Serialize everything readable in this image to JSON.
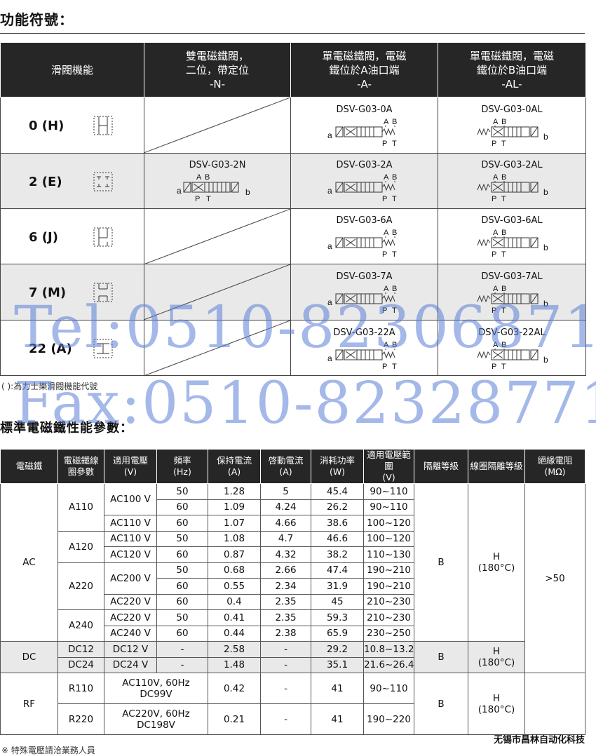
{
  "section1": {
    "title": "功能符號："
  },
  "function_table": {
    "headers": [
      {
        "line1": "滑閥機能",
        "line2": "",
        "line3": ""
      },
      {
        "line1": "雙電磁鐵閥，",
        "line2": "二位，帶定位",
        "line3": "-N-"
      },
      {
        "line1": "單電磁鐵閥，電磁",
        "line2": "鐵位於A油口端",
        "line3": "-A-"
      },
      {
        "line1": "單電磁鐵閥，電磁",
        "line2": "鐵位於B油口端",
        "line3": "-AL-"
      }
    ],
    "rows": [
      {
        "function": "0 (H)",
        "n": "",
        "a": "DSV-G03-0A",
        "al": "DSV-G03-0AL"
      },
      {
        "function": "2 (E)",
        "n": "DSV-G03-2N",
        "a": "DSV-G03-2A",
        "al": "DSV-G03-2AL"
      },
      {
        "function": "6 (J)",
        "n": "",
        "a": "DSV-G03-6A",
        "al": "DSV-G03-6AL"
      },
      {
        "function": "7 (M)",
        "n": "",
        "a": "DSV-G03-7A",
        "al": "DSV-G03-7AL"
      },
      {
        "function": "22 (A)",
        "n": "",
        "a": "DSV-G03-22A",
        "al": "DSV-G03-22AL"
      }
    ],
    "symbol_labels": {
      "a": "a",
      "b": "b",
      "A": "A",
      "B": "B",
      "P": "P",
      "T": "T"
    }
  },
  "note1": "( ):為力士樂滑閥機能代號",
  "section2": {
    "title": "標準電磁鐵性能參數："
  },
  "perf_table": {
    "headers": {
      "h0": "電磁鐵",
      "h1a": "電磁鐵線",
      "h1b": "圈參數",
      "h2a": "適用電壓",
      "h2b": "(V)",
      "h3a": "頻率",
      "h3b": "(Hz)",
      "h4a": "保持電流",
      "h4b": "(A)",
      "h5a": "啓動電流",
      "h5b": "(A)",
      "h6a": "消耗功率",
      "h6b": "(W)",
      "h7a": "適用電壓範圍",
      "h7b": "(V)",
      "h8": "隔離等級",
      "h9": "線圈隔離等級",
      "h10a": "絕緣電阻",
      "h10b": "(MΩ)"
    },
    "ac": {
      "type": "AC",
      "rows": [
        {
          "coil": "A110",
          "volt": "AC100 V",
          "hz": "50",
          "hold": "1.28",
          "start": "5",
          "power": "45.4",
          "range": "90~110"
        },
        {
          "hz": "60",
          "hold": "1.09",
          "start": "4.24",
          "power": "26.2",
          "range": "90~110"
        },
        {
          "volt": "AC110 V",
          "hz": "60",
          "hold": "1.07",
          "start": "4.66",
          "power": "38.6",
          "range": "100~120"
        },
        {
          "coil": "A120",
          "volt": "AC110 V",
          "hz": "50",
          "hold": "1.08",
          "start": "4.7",
          "power": "46.6",
          "range": "100~120"
        },
        {
          "volt": "AC120 V",
          "hz": "60",
          "hold": "0.87",
          "start": "4.32",
          "power": "38.2",
          "range": "110~130"
        },
        {
          "coil": "A220",
          "volt": "AC200 V",
          "hz": "50",
          "hold": "0.68",
          "start": "2.66",
          "power": "47.4",
          "range": "190~210"
        },
        {
          "hz": "60",
          "hold": "0.55",
          "start": "2.34",
          "power": "31.9",
          "range": "190~210"
        },
        {
          "volt": "AC220 V",
          "hz": "60",
          "hold": "0.4",
          "start": "2.35",
          "power": "45",
          "range": "210~230"
        },
        {
          "coil": "A240",
          "volt": "AC220 V",
          "hz": "50",
          "hold": "0.41",
          "start": "2.35",
          "power": "59.3",
          "range": "210~230"
        },
        {
          "volt": "AC240 V",
          "hz": "60",
          "hold": "0.44",
          "start": "2.38",
          "power": "65.9",
          "range": "230~250"
        }
      ],
      "iso": "B",
      "coil_iso_1": "H",
      "coil_iso_2": "(180°C)"
    },
    "insulation": ">50",
    "dc": {
      "type": "DC",
      "rows": [
        {
          "coil": "DC12",
          "volt": "DC12 V",
          "hz": "-",
          "hold": "2.58",
          "start": "-",
          "power": "29.2",
          "range": "10.8~13.2"
        },
        {
          "coil": "DC24",
          "volt": "DC24 V",
          "hz": "-",
          "hold": "1.48",
          "start": "-",
          "power": "35.1",
          "range": "21.6~26.4"
        }
      ],
      "iso": "B",
      "coil_iso_1": "H",
      "coil_iso_2": "(180°C)"
    },
    "rf": {
      "type": "RF",
      "rows": [
        {
          "coil": "R110",
          "volt1": "AC110V, 60Hz",
          "volt2": "DC99V",
          "hold": "0.42",
          "start": "-",
          "power": "41",
          "range": "90~110"
        },
        {
          "coil": "R220",
          "volt1": "AC220V, 60Hz",
          "volt2": "DC198V",
          "hold": "0.21",
          "start": "-",
          "power": "41",
          "range": "190~220"
        }
      ],
      "iso": "B",
      "coil_iso_1": "H",
      "coil_iso_2": "(180°C)"
    }
  },
  "note2": "※ 特殊電壓請洽業務人員",
  "company": "无锡市昌林自动化科技",
  "watermark": {
    "line1": "Tel:0510-82306871",
    "line2": "Fax:0510-82328771"
  }
}
